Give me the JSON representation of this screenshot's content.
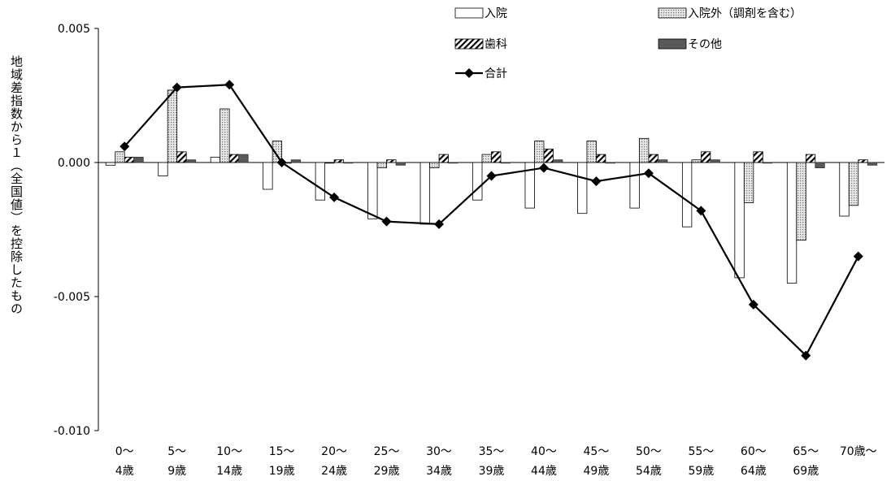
{
  "chart_data": {
    "type": "bar",
    "ylabel": "地域差指数から１（全国値）を控除したもの",
    "ylim": [
      -0.01,
      0.005
    ],
    "yticks": [
      "0.005",
      "0.000",
      "-0.005",
      "-0.010"
    ],
    "ytick_values": [
      0.005,
      0.0,
      -0.005,
      -0.01
    ],
    "categories": [
      [
        "0～",
        "4歳"
      ],
      [
        "5～",
        "9歳"
      ],
      [
        "10～",
        "14歳"
      ],
      [
        "15～",
        "19歳"
      ],
      [
        "20～",
        "24歳"
      ],
      [
        "25～",
        "29歳"
      ],
      [
        "30～",
        "34歳"
      ],
      [
        "35～",
        "39歳"
      ],
      [
        "40～",
        "44歳"
      ],
      [
        "45～",
        "49歳"
      ],
      [
        "50～",
        "54歳"
      ],
      [
        "55～",
        "59歳"
      ],
      [
        "60～",
        "64歳"
      ],
      [
        "65～",
        "69歳"
      ],
      [
        "70歳～",
        ""
      ]
    ],
    "series": [
      {
        "name": "入院",
        "kind": "bar",
        "pattern": "white",
        "values": [
          -0.0001,
          -0.0005,
          0.0002,
          -0.001,
          -0.0014,
          -0.0021,
          -0.0023,
          -0.0014,
          -0.0017,
          -0.0019,
          -0.0017,
          -0.0024,
          -0.0043,
          -0.0045,
          -0.002
        ]
      },
      {
        "name": "入院外（調剤を含む）",
        "kind": "bar",
        "pattern": "dotted",
        "values": [
          0.0004,
          0.0027,
          0.002,
          0.0008,
          0.0,
          -0.0002,
          -0.0002,
          0.0003,
          0.0008,
          0.0008,
          0.0009,
          0.0001,
          -0.0015,
          -0.0029,
          -0.0016
        ]
      },
      {
        "name": "歯科",
        "kind": "bar",
        "pattern": "hatched",
        "values": [
          0.0002,
          0.0004,
          0.0003,
          0.0,
          0.0001,
          0.0001,
          0.0003,
          0.0004,
          0.0005,
          0.0003,
          0.0003,
          0.0004,
          0.0004,
          0.0003,
          0.0001
        ]
      },
      {
        "name": "その他",
        "kind": "bar",
        "pattern": "dark",
        "values": [
          0.0002,
          0.0001,
          0.0003,
          0.0001,
          0.0,
          -0.0001,
          0.0,
          0.0,
          0.0001,
          0.0,
          0.0001,
          0.0001,
          0.0,
          -0.0002,
          -0.0001
        ]
      },
      {
        "name": "合計",
        "kind": "line",
        "marker": "diamond",
        "values": [
          0.0006,
          0.0028,
          0.0029,
          0.0,
          -0.0013,
          -0.0022,
          -0.0023,
          -0.0005,
          -0.0002,
          -0.0007,
          -0.0004,
          -0.0018,
          -0.0053,
          -0.0072,
          -0.0035
        ]
      }
    ],
    "legend_position": "top-right",
    "grid": false
  },
  "colors": {
    "white": "#ffffff",
    "dotted": "#d9d9d9",
    "dark": "#595959",
    "line": "#000000"
  }
}
